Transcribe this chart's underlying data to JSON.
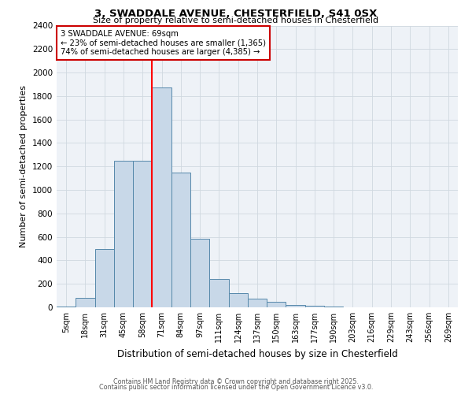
{
  "title": "3, SWADDALE AVENUE, CHESTERFIELD, S41 0SX",
  "subtitle": "Size of property relative to semi-detached houses in Chesterfield",
  "xlabel": "Distribution of semi-detached houses by size in Chesterfield",
  "ylabel": "Number of semi-detached properties",
  "categories": [
    "5sqm",
    "18sqm",
    "31sqm",
    "45sqm",
    "58sqm",
    "71sqm",
    "84sqm",
    "97sqm",
    "111sqm",
    "124sqm",
    "137sqm",
    "150sqm",
    "163sqm",
    "177sqm",
    "190sqm",
    "203sqm",
    "216sqm",
    "229sqm",
    "243sqm",
    "256sqm",
    "269sqm"
  ],
  "values": [
    10,
    80,
    500,
    1250,
    1250,
    1870,
    1150,
    585,
    240,
    120,
    75,
    50,
    20,
    15,
    5,
    0,
    0,
    0,
    0,
    0,
    0
  ],
  "bar_color": "#c8d8e8",
  "bar_edge_color": "#5588aa",
  "red_line_x": 4.5,
  "red_line_label": "3 SWADDALE AVENUE: 69sqm",
  "pct_smaller": "23%",
  "pct_smaller_n": "1,365",
  "pct_larger": "74%",
  "pct_larger_n": "4,385",
  "ylim": [
    0,
    2400
  ],
  "yticks": [
    0,
    200,
    400,
    600,
    800,
    1000,
    1200,
    1400,
    1600,
    1800,
    2000,
    2200,
    2400
  ],
  "annotation_box_color": "#ffffff",
  "annotation_box_edge": "#cc0000",
  "grid_color": "#d0d8e0",
  "bg_color": "#eef2f7",
  "footer1": "Contains HM Land Registry data © Crown copyright and database right 2025.",
  "footer2": "Contains public sector information licensed under the Open Government Licence v3.0."
}
